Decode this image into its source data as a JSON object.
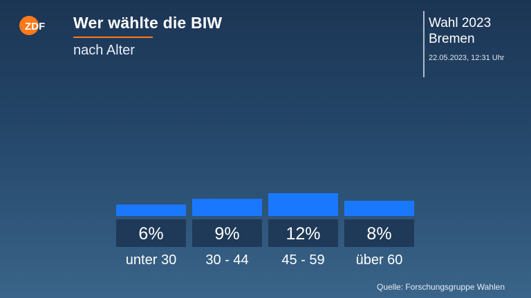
{
  "header": {
    "title": "Wer wählte die BIW",
    "subtitle": "nach Alter",
    "side_line1": "Wahl 2023",
    "side_line2": "Bremen",
    "timestamp": "22.05.2023, 12:31 Uhr",
    "logo_text": "ZDF"
  },
  "source": "Quelle: Forschungsgruppe Wahlen",
  "colors": {
    "bar": "#1a78ff",
    "label_box": "#1f3a58",
    "accent": "#ff7a1a"
  },
  "chart_data": {
    "type": "bar",
    "title": "Wer wählte die BIW",
    "subtitle": "nach Alter",
    "categories": [
      "unter 30",
      "30 - 44",
      "45 - 59",
      "über 60"
    ],
    "values": [
      6,
      9,
      12,
      8
    ],
    "value_labels": [
      "6%",
      "9%",
      "12%",
      "8%"
    ],
    "unit": "%",
    "grid": false
  }
}
